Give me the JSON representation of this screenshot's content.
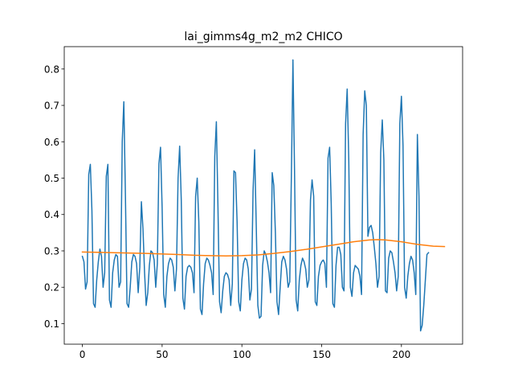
{
  "chart_data": {
    "type": "line",
    "title": "lai_gimms4g_m2_m2 CHICO",
    "xlabel": "",
    "ylabel": "",
    "xlim": [
      -11.35,
      238.35
    ],
    "ylim": [
      0.0435,
      0.8615
    ],
    "xticks": [
      0,
      50,
      100,
      150,
      200
    ],
    "xtick_labels": [
      "0",
      "50",
      "100",
      "150",
      "200"
    ],
    "yticks": [
      0.1,
      0.2,
      0.3,
      0.4,
      0.5,
      0.6,
      0.7,
      0.8
    ],
    "ytick_labels": [
      "0.1",
      "0.2",
      "0.3",
      "0.4",
      "0.5",
      "0.6",
      "0.7",
      "0.8"
    ],
    "grid": false,
    "series": [
      {
        "color": "#1f77b4",
        "x_start": 0,
        "values": [
          0.285,
          0.27,
          0.195,
          0.215,
          0.51,
          0.538,
          0.41,
          0.155,
          0.145,
          0.22,
          0.27,
          0.305,
          0.285,
          0.2,
          0.24,
          0.505,
          0.538,
          0.165,
          0.145,
          0.24,
          0.275,
          0.29,
          0.285,
          0.2,
          0.215,
          0.6,
          0.71,
          0.45,
          0.155,
          0.145,
          0.2,
          0.27,
          0.29,
          0.285,
          0.265,
          0.185,
          0.255,
          0.435,
          0.36,
          0.24,
          0.15,
          0.185,
          0.26,
          0.3,
          0.295,
          0.275,
          0.2,
          0.265,
          0.54,
          0.585,
          0.42,
          0.18,
          0.145,
          0.23,
          0.265,
          0.28,
          0.275,
          0.255,
          0.19,
          0.25,
          0.5,
          0.588,
          0.44,
          0.17,
          0.14,
          0.23,
          0.255,
          0.26,
          0.255,
          0.24,
          0.185,
          0.45,
          0.5,
          0.38,
          0.14,
          0.125,
          0.21,
          0.265,
          0.28,
          0.275,
          0.26,
          0.24,
          0.18,
          0.56,
          0.655,
          0.42,
          0.16,
          0.13,
          0.19,
          0.23,
          0.24,
          0.235,
          0.22,
          0.15,
          0.21,
          0.52,
          0.515,
          0.38,
          0.16,
          0.135,
          0.22,
          0.265,
          0.28,
          0.275,
          0.25,
          0.165,
          0.195,
          0.465,
          0.578,
          0.37,
          0.15,
          0.115,
          0.12,
          0.26,
          0.3,
          0.29,
          0.27,
          0.24,
          0.185,
          0.515,
          0.48,
          0.35,
          0.16,
          0.125,
          0.2,
          0.27,
          0.285,
          0.275,
          0.25,
          0.2,
          0.215,
          0.5,
          0.825,
          0.52,
          0.165,
          0.135,
          0.22,
          0.26,
          0.28,
          0.27,
          0.25,
          0.2,
          0.22,
          0.44,
          0.495,
          0.45,
          0.16,
          0.15,
          0.23,
          0.26,
          0.27,
          0.275,
          0.265,
          0.2,
          0.555,
          0.585,
          0.43,
          0.155,
          0.145,
          0.26,
          0.31,
          0.31,
          0.29,
          0.2,
          0.19,
          0.65,
          0.745,
          0.55,
          0.2,
          0.175,
          0.24,
          0.26,
          0.255,
          0.25,
          0.23,
          0.18,
          0.62,
          0.74,
          0.7,
          0.34,
          0.365,
          0.37,
          0.35,
          0.31,
          0.265,
          0.2,
          0.23,
          0.57,
          0.66,
          0.55,
          0.19,
          0.185,
          0.28,
          0.3,
          0.295,
          0.27,
          0.24,
          0.19,
          0.23,
          0.65,
          0.725,
          0.59,
          0.2,
          0.17,
          0.23,
          0.265,
          0.285,
          0.275,
          0.24,
          0.18,
          0.62,
          0.45,
          0.08,
          0.095,
          0.15,
          0.22,
          0.29,
          0.295
        ]
      },
      {
        "color": "#ff7f0e",
        "x": [
          0,
          20,
          40,
          60,
          70,
          80,
          90,
          100,
          110,
          120,
          130,
          140,
          150,
          160,
          170,
          180,
          185,
          190,
          200,
          210,
          220,
          227
        ],
        "values": [
          0.297,
          0.295,
          0.293,
          0.29,
          0.288,
          0.287,
          0.286,
          0.287,
          0.289,
          0.293,
          0.298,
          0.304,
          0.311,
          0.318,
          0.325,
          0.33,
          0.331,
          0.33,
          0.325,
          0.318,
          0.313,
          0.312
        ]
      }
    ]
  }
}
